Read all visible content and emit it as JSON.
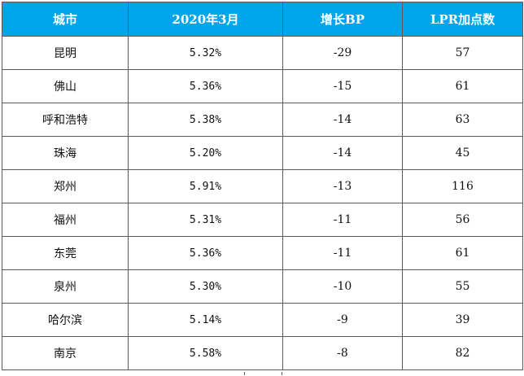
{
  "table": {
    "headers": [
      "城市",
      "2020年3月",
      "增长BP",
      "LPR加点数"
    ],
    "rows": [
      {
        "city": "昆明",
        "rate": "5.32%",
        "growth_bp": "-29",
        "lpr_spread": "57"
      },
      {
        "city": "佛山",
        "rate": "5.36%",
        "growth_bp": "-15",
        "lpr_spread": "61"
      },
      {
        "city": "呼和浩特",
        "rate": "5.38%",
        "growth_bp": "-14",
        "lpr_spread": "63"
      },
      {
        "city": "珠海",
        "rate": "5.20%",
        "growth_bp": "-14",
        "lpr_spread": "45"
      },
      {
        "city": "郑州",
        "rate": "5.91%",
        "growth_bp": "-13",
        "lpr_spread": "116"
      },
      {
        "city": "福州",
        "rate": "5.31%",
        "growth_bp": "-11",
        "lpr_spread": "56"
      },
      {
        "city": "东莞",
        "rate": "5.36%",
        "growth_bp": "-11",
        "lpr_spread": "61"
      },
      {
        "city": "泉州",
        "rate": "5.30%",
        "growth_bp": "-10",
        "lpr_spread": "55"
      },
      {
        "city": "哈尔滨",
        "rate": "5.14%",
        "growth_bp": "-9",
        "lpr_spread": "39"
      },
      {
        "city": "南京",
        "rate": "5.58%",
        "growth_bp": "-8",
        "lpr_spread": "82"
      }
    ]
  },
  "colors": {
    "header_bg": "#00a6ec",
    "header_text": "#ffffff",
    "grid": "#5a5a5a"
  }
}
